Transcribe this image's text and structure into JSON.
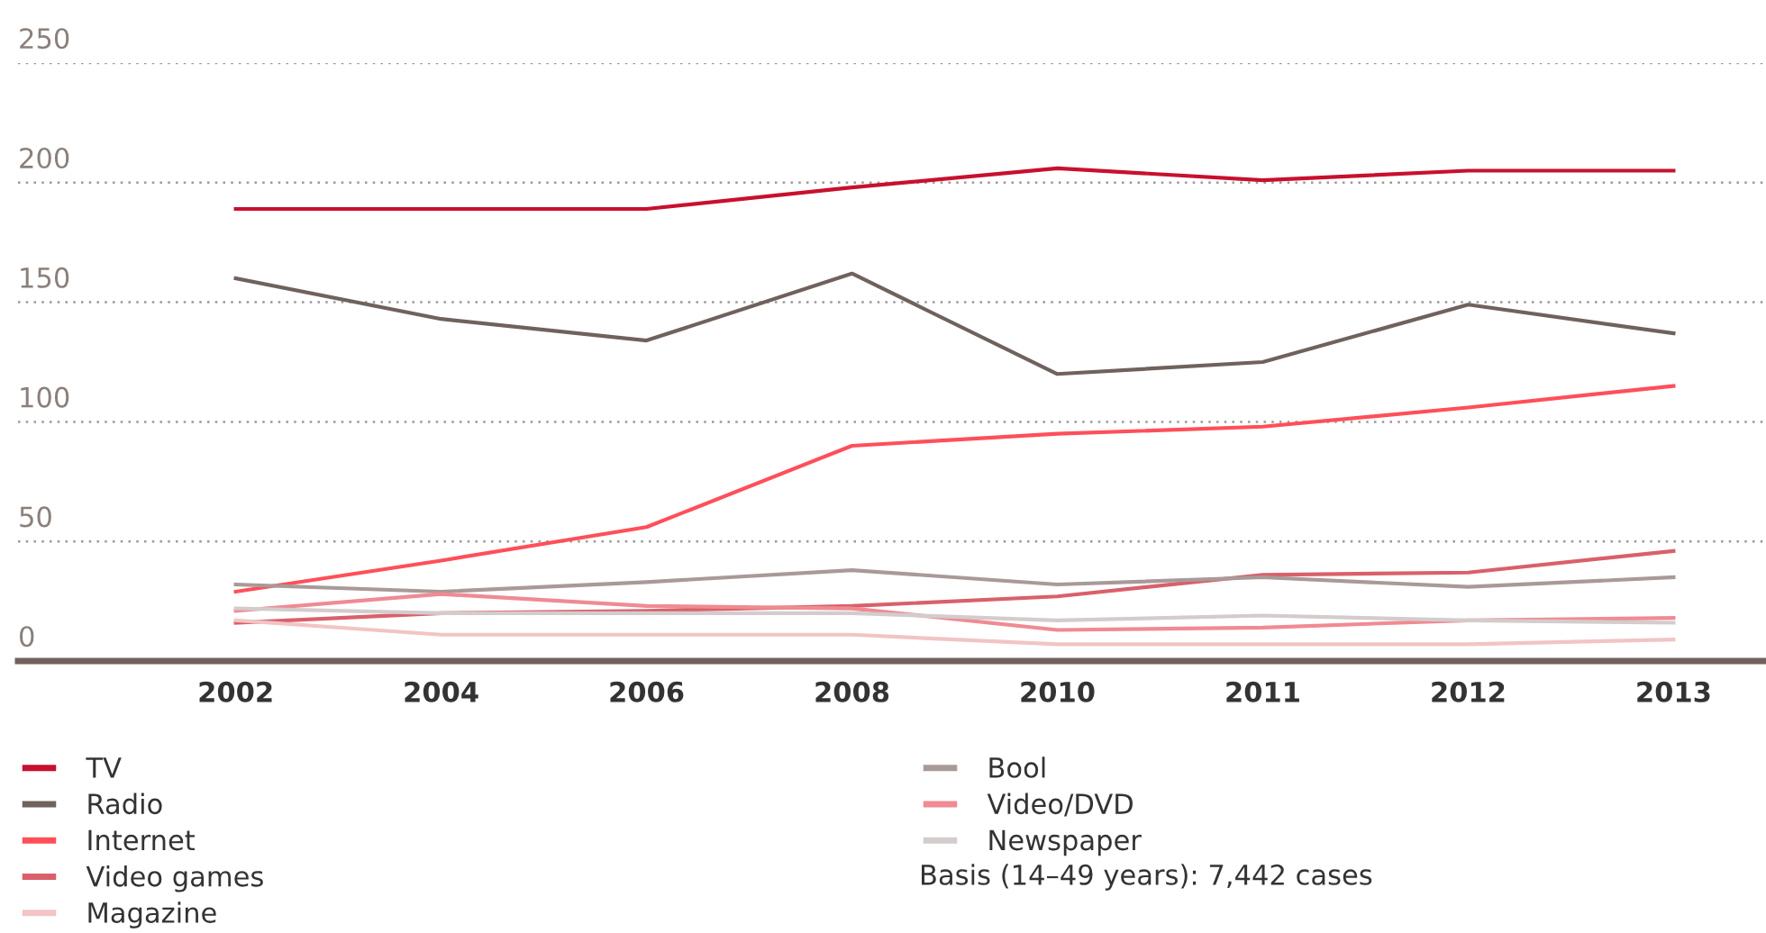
{
  "chart_data": {
    "type": "line",
    "categories": [
      "2002",
      "2004",
      "2006",
      "2008",
      "2010",
      "2011",
      "2012",
      "2013"
    ],
    "series": [
      {
        "name": "TV",
        "color": "#c8102e",
        "values": [
          189,
          189,
          189,
          198,
          206,
          201,
          205,
          205
        ]
      },
      {
        "name": "Radio",
        "color": "#6f625d",
        "values": [
          160,
          143,
          134,
          162,
          120,
          125,
          149,
          137
        ]
      },
      {
        "name": "Internet",
        "color": "#ff4f5a",
        "values": [
          29,
          42,
          56,
          90,
          95,
          98,
          106,
          115
        ]
      },
      {
        "name": "Video games",
        "color": "#d9606b",
        "values": [
          16,
          20,
          21,
          23,
          27,
          36,
          37,
          46
        ]
      },
      {
        "name": "Magazine",
        "color": "#f2c4c4",
        "values": [
          17,
          11,
          11,
          11,
          7,
          7,
          7,
          9
        ]
      },
      {
        "name": "Bool",
        "color": "#a89a98",
        "values": [
          32,
          29,
          33,
          38,
          32,
          35,
          31,
          35
        ]
      },
      {
        "name": "Video/DVD",
        "color": "#f08a93",
        "values": [
          21,
          28,
          23,
          22,
          13,
          14,
          17,
          18
        ]
      },
      {
        "name": "Newspaper",
        "color": "#d4cccc",
        "values": [
          22,
          20,
          20,
          20,
          17,
          19,
          17,
          16
        ]
      }
    ],
    "ylim": [
      0,
      250
    ],
    "yticks": [
      0,
      50,
      100,
      150,
      200,
      250
    ],
    "grid": "y",
    "legend": "bottom",
    "marker": "none",
    "line_style": "solid",
    "annotations": [
      "Basis (14–49 years): 7,442 cases"
    ]
  }
}
